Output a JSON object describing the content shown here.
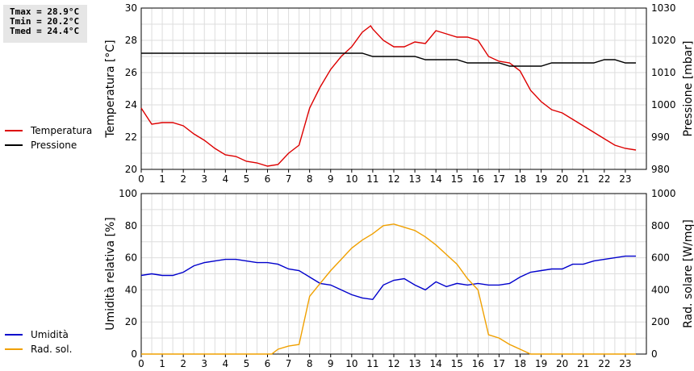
{
  "stats": {
    "tmax": "Tmax = 28.9°C",
    "tmin": "Tmin = 20.2°C",
    "tmed": "Tmed = 24.4°C"
  },
  "colors": {
    "temperature": "#dd0000",
    "pressure": "#000000",
    "humidity": "#0000cc",
    "solar": "#f0a000",
    "grid": "#dddddd"
  },
  "chart_data": [
    {
      "type": "line",
      "title": "",
      "xlabel": "",
      "ylabel": "Temperatura [°C]",
      "ylabel_right": "Pressione [mbar]",
      "xlim": [
        0,
        24
      ],
      "ylim": [
        20,
        30
      ],
      "ylim_right": [
        980,
        1030
      ],
      "xticks": [
        "0",
        "1",
        "2",
        "3",
        "4",
        "5",
        "6",
        "7",
        "8",
        "9",
        "10",
        "11",
        "12",
        "13",
        "14",
        "15",
        "16",
        "17",
        "18",
        "19",
        "20",
        "21",
        "22",
        "23"
      ],
      "yticks": [
        "20",
        "22",
        "24",
        "26",
        "28",
        "30"
      ],
      "yticks_right": [
        "980",
        "990",
        "1000",
        "1010",
        "1020",
        "1030"
      ],
      "grid": true,
      "legend": "left",
      "series": [
        {
          "name": "Temperatura",
          "axis": "left",
          "x": [
            0,
            0.5,
            1,
            1.5,
            2,
            2.5,
            3,
            3.5,
            4,
            4.5,
            5,
            5.5,
            6,
            6.5,
            7,
            7.5,
            8,
            8.5,
            9,
            9.5,
            10,
            10.5,
            10.9,
            11,
            11.5,
            12,
            12.5,
            13,
            13.5,
            14,
            14.5,
            15,
            15.5,
            16,
            16.5,
            17,
            17.5,
            18,
            18.5,
            19,
            19.5,
            20,
            20.5,
            21,
            21.5,
            22,
            22.5,
            23,
            23.5
          ],
          "values": [
            23.8,
            22.8,
            22.9,
            22.9,
            22.7,
            22.2,
            21.8,
            21.3,
            20.9,
            20.8,
            20.5,
            20.4,
            20.2,
            20.3,
            21.0,
            21.5,
            23.8,
            25.1,
            26.2,
            27.0,
            27.6,
            28.5,
            28.9,
            28.7,
            28.0,
            27.6,
            27.6,
            27.9,
            27.8,
            28.6,
            28.4,
            28.2,
            28.2,
            28.0,
            27.0,
            26.7,
            26.6,
            26.1,
            24.9,
            24.2,
            23.7,
            23.5,
            23.1,
            22.7,
            22.3,
            21.9,
            21.5,
            21.3,
            21.2
          ]
        },
        {
          "name": "Pressione",
          "axis": "right",
          "x": [
            0,
            1,
            2,
            3,
            4,
            5,
            6,
            7,
            8,
            9,
            10,
            10.5,
            11,
            12,
            13,
            13.5,
            14,
            15,
            15.5,
            16,
            17,
            17.5,
            18,
            19,
            19.5,
            20,
            21,
            21.5,
            22,
            22.5,
            23,
            23.5
          ],
          "values": [
            1016,
            1016,
            1016,
            1016,
            1016,
            1016,
            1016,
            1016,
            1016,
            1016,
            1016,
            1016,
            1015,
            1015,
            1015,
            1014,
            1014,
            1014,
            1013,
            1013,
            1013,
            1012,
            1012,
            1012,
            1013,
            1013,
            1013,
            1013,
            1014,
            1014,
            1013,
            1013
          ]
        }
      ]
    },
    {
      "type": "line",
      "title": "",
      "xlabel": "",
      "ylabel": "Umidità relativa [%]",
      "ylabel_right": "Rad. solare [W/mq]",
      "xlim": [
        0,
        24
      ],
      "ylim": [
        0,
        100
      ],
      "ylim_right": [
        0,
        1000
      ],
      "xticks": [
        "0",
        "1",
        "2",
        "3",
        "4",
        "5",
        "6",
        "7",
        "8",
        "9",
        "10",
        "11",
        "12",
        "13",
        "14",
        "15",
        "16",
        "17",
        "18",
        "19",
        "20",
        "21",
        "22",
        "23"
      ],
      "yticks": [
        "0",
        "20",
        "40",
        "60",
        "80",
        "100"
      ],
      "yticks_right": [
        "0",
        "200",
        "400",
        "600",
        "800",
        "1000"
      ],
      "grid": true,
      "legend": "left",
      "series": [
        {
          "name": "Umidità",
          "axis": "left",
          "x": [
            0,
            0.5,
            1,
            1.5,
            2,
            2.5,
            3,
            3.5,
            4,
            4.5,
            5,
            5.5,
            6,
            6.5,
            7,
            7.5,
            8,
            8.5,
            9,
            9.5,
            10,
            10.5,
            11,
            11.5,
            12,
            12.5,
            13,
            13.5,
            14,
            14.5,
            15,
            15.5,
            16,
            16.5,
            17,
            17.5,
            18,
            18.5,
            19,
            19.5,
            20,
            20.5,
            21,
            21.5,
            22,
            22.5,
            23,
            23.5
          ],
          "values": [
            49,
            50,
            49,
            49,
            51,
            55,
            57,
            58,
            59,
            59,
            58,
            57,
            57,
            56,
            53,
            52,
            48,
            44,
            43,
            40,
            37,
            35,
            34,
            43,
            46,
            47,
            43,
            40,
            45,
            42,
            44,
            43,
            44,
            43,
            43,
            44,
            48,
            51,
            52,
            53,
            53,
            56,
            56,
            58,
            59,
            60,
            61,
            61
          ]
        },
        {
          "name": "Rad. sol.",
          "axis": "right",
          "x": [
            0,
            1,
            2,
            3,
            4,
            5,
            6,
            6.2,
            6.5,
            7,
            7.5,
            8,
            8.5,
            9,
            9.5,
            10,
            10.5,
            11,
            11.5,
            12,
            12.5,
            13,
            13.5,
            14,
            14.5,
            15,
            15.5,
            16,
            16.5,
            17,
            17.5,
            18,
            18.5,
            19,
            20,
            21,
            22,
            23,
            23.5
          ],
          "values": [
            0,
            0,
            0,
            0,
            0,
            0,
            0,
            0,
            30,
            50,
            60,
            360,
            440,
            520,
            590,
            660,
            710,
            750,
            800,
            810,
            790,
            770,
            730,
            680,
            620,
            560,
            470,
            400,
            120,
            100,
            60,
            30,
            0,
            0,
            0,
            0,
            0,
            0,
            0
          ]
        }
      ]
    }
  ]
}
